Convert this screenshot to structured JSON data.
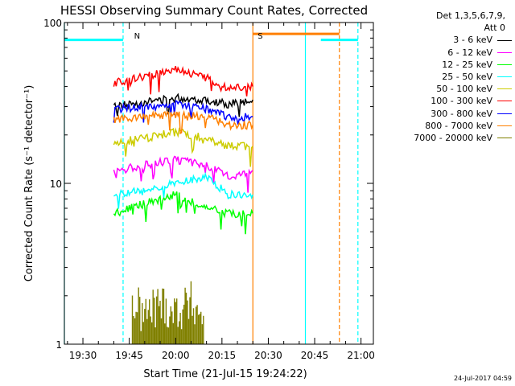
{
  "chart_data": {
    "type": "line",
    "title": "HESSI Observing Summary Count Rates, Corrected",
    "xlabel": "Start Time (21-Jul-15 19:24:22)",
    "ylabel": "Corrected Count Rate (s⁻¹ detector⁻¹)",
    "yscale": "log",
    "ylim": [
      1,
      100
    ],
    "xlim": [
      "19:24",
      "21:04"
    ],
    "x_ticks": [
      "19:30",
      "19:45",
      "20:00",
      "20:15",
      "20:30",
      "20:45",
      "21:00"
    ],
    "y_ticks": [
      "1",
      "10",
      "100"
    ],
    "grid": false,
    "legend_header": [
      "Det 1,3,5,6,7,9,",
      "Att 0"
    ],
    "legend_position": "right",
    "series": [
      {
        "name": "3 - 6 keV",
        "color": "#000000",
        "x": [
          "19:40",
          "19:50",
          "20:00",
          "20:10",
          "20:17",
          "20:25"
        ],
        "values": [
          30,
          32,
          34,
          33,
          31,
          33
        ]
      },
      {
        "name": "6 - 12 keV",
        "color": "#ff00ff",
        "x": [
          "19:40",
          "19:50",
          "20:00",
          "20:10",
          "20:17",
          "20:25"
        ],
        "values": [
          12,
          13,
          14,
          13,
          11,
          12
        ]
      },
      {
        "name": "12 - 25 keV",
        "color": "#00ff00",
        "x": [
          "19:40",
          "19:50",
          "20:00",
          "20:10",
          "20:17",
          "20:25"
        ],
        "values": [
          6.5,
          7.5,
          8.5,
          7,
          6.5,
          6.5
        ]
      },
      {
        "name": "25 - 50 keV",
        "color": "#00ffff",
        "x": [
          "19:40",
          "19:50",
          "20:00",
          "20:10",
          "20:17",
          "20:25"
        ],
        "values": [
          8.5,
          9,
          10,
          11,
          8.5,
          8.5
        ]
      },
      {
        "name": "50 - 100 keV",
        "color": "#cccc00",
        "x": [
          "19:40",
          "19:50",
          "20:00",
          "20:10",
          "20:17",
          "20:25"
        ],
        "values": [
          18,
          19,
          21,
          19,
          17,
          17
        ]
      },
      {
        "name": "100 - 300 keV",
        "color": "#ff0000",
        "x": [
          "19:40",
          "19:50",
          "20:00",
          "20:10",
          "20:17",
          "20:25"
        ],
        "values": [
          42,
          46,
          52,
          45,
          40,
          40
        ]
      },
      {
        "name": "300 - 800 keV",
        "color": "#0000ff",
        "x": [
          "19:40",
          "19:50",
          "20:00",
          "20:10",
          "20:17",
          "20:25"
        ],
        "values": [
          29,
          30,
          31,
          29,
          26,
          26
        ]
      },
      {
        "name": "800 - 7000 keV",
        "color": "#ff8000",
        "x": [
          "19:40",
          "19:50",
          "20:00",
          "20:10",
          "20:17",
          "20:25"
        ],
        "values": [
          25,
          26,
          27,
          26,
          23,
          23
        ]
      },
      {
        "name": "7000 - 20000 keV",
        "color": "#808000",
        "x": [
          "19:46",
          "19:50",
          "19:55",
          "20:00",
          "20:05",
          "20:09"
        ],
        "values": [
          1.8,
          1.5,
          1.8,
          1.6,
          1.8,
          1.5
        ]
      }
    ],
    "annotations": [
      {
        "text": "N",
        "color": "#00c8ff",
        "x": "19:45"
      },
      {
        "text": "S",
        "color": "#ff8000",
        "x": "20:25"
      }
    ],
    "flag_bars": [
      {
        "color": "#00ffff",
        "type": "night",
        "x_start": "19:24",
        "x_end": "19:43",
        "y": 78
      },
      {
        "color": "#ff8000",
        "type": "saa",
        "x_start": "20:25",
        "x_end": "20:53",
        "y": 85
      },
      {
        "color": "#00ffff",
        "type": "night",
        "x_start": "20:47",
        "x_end": "20:59",
        "y": 78
      }
    ],
    "vertical_lines": [
      {
        "x": "19:24",
        "color": "#00ffff",
        "style": "solid"
      },
      {
        "x": "19:43",
        "color": "#00ffff",
        "style": "dashed"
      },
      {
        "x": "20:25",
        "color": "#ff8000",
        "style": "solid"
      },
      {
        "x": "20:42",
        "color": "#00ffff",
        "style": "solid"
      },
      {
        "x": "20:53",
        "color": "#ff8000",
        "style": "dashed"
      },
      {
        "x": "20:59",
        "color": "#00ffff",
        "style": "dashed"
      }
    ]
  },
  "timestamp": "24-Jul-2017 04:59"
}
